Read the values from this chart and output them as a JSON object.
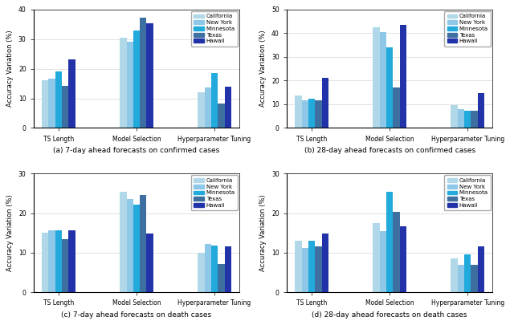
{
  "subplots": [
    {
      "title": "(a) 7-day ahead forecasts on confirmed cases",
      "ylabel": "Accuracy Variation (%)",
      "categories": [
        "TS Length",
        "Model Selection",
        "Hyperparameter Tuning"
      ],
      "ylim": [
        0,
        40
      ],
      "yticks": [
        0,
        10,
        20,
        30,
        40
      ],
      "series": {
        "California": [
          16.2,
          30.5,
          12.0
        ],
        "New York": [
          16.7,
          29.2,
          13.8
        ],
        "Minnesota": [
          19.0,
          32.8,
          18.5
        ],
        "Texas": [
          14.2,
          37.2,
          8.2
        ],
        "Hawaii": [
          23.2,
          35.4,
          13.9
        ]
      }
    },
    {
      "title": "(b) 28-day ahead forecasts on confirmed cases",
      "ylabel": "Accuracy Variation (%)",
      "categories": [
        "TS Length",
        "Model Selection",
        "Hyperparameter Tuning"
      ],
      "ylim": [
        0,
        50
      ],
      "yticks": [
        0,
        10,
        20,
        30,
        40,
        50
      ],
      "series": {
        "California": [
          13.6,
          42.5,
          9.5
        ],
        "New York": [
          11.6,
          40.4,
          7.8
        ],
        "Minnesota": [
          12.2,
          33.9,
          7.2
        ],
        "Texas": [
          11.8,
          17.0,
          7.3
        ],
        "Hawaii": [
          21.0,
          43.5,
          14.8
        ]
      }
    },
    {
      "title": "(c) 7-day ahead forecasts on death cases",
      "ylabel": "Accuracy Variation (%)",
      "categories": [
        "TS Length",
        "Model Selection",
        "Hyperparameter Tuning"
      ],
      "ylim": [
        0,
        30
      ],
      "yticks": [
        0,
        10,
        20,
        30
      ],
      "series": {
        "California": [
          15.0,
          25.5,
          10.0
        ],
        "New York": [
          15.6,
          23.5,
          12.2
        ],
        "Minnesota": [
          15.6,
          22.1,
          11.9
        ],
        "Texas": [
          13.4,
          24.7,
          7.1
        ],
        "Hawaii": [
          15.7,
          14.9,
          11.5
        ]
      }
    },
    {
      "title": "(d) 28-day ahead forecasts on death cases",
      "ylabel": "Accuracy Variation (%)",
      "categories": [
        "TS Length",
        "Model Selection",
        "Hyperparameter Tuning"
      ],
      "ylim": [
        0,
        30
      ],
      "yticks": [
        0,
        10,
        20,
        30
      ],
      "series": {
        "California": [
          13.0,
          17.5,
          8.5
        ],
        "New York": [
          11.2,
          15.5,
          7.0
        ],
        "Minnesota": [
          13.0,
          25.5,
          9.5
        ],
        "Texas": [
          11.5,
          20.3,
          7.0
        ],
        "Hawaii": [
          14.9,
          16.7,
          11.5
        ]
      }
    }
  ],
  "colors": {
    "California": "#B0D8E8",
    "New York": "#8EC8E8",
    "Minnesota": "#22AADD",
    "Texas": "#3D6FA0",
    "Hawaii": "#2233AA"
  },
  "legend_order": [
    "California",
    "New York",
    "Minnesota",
    "Texas",
    "Hawaii"
  ],
  "bar_width": 0.12,
  "figure_bgcolor": "#ffffff"
}
